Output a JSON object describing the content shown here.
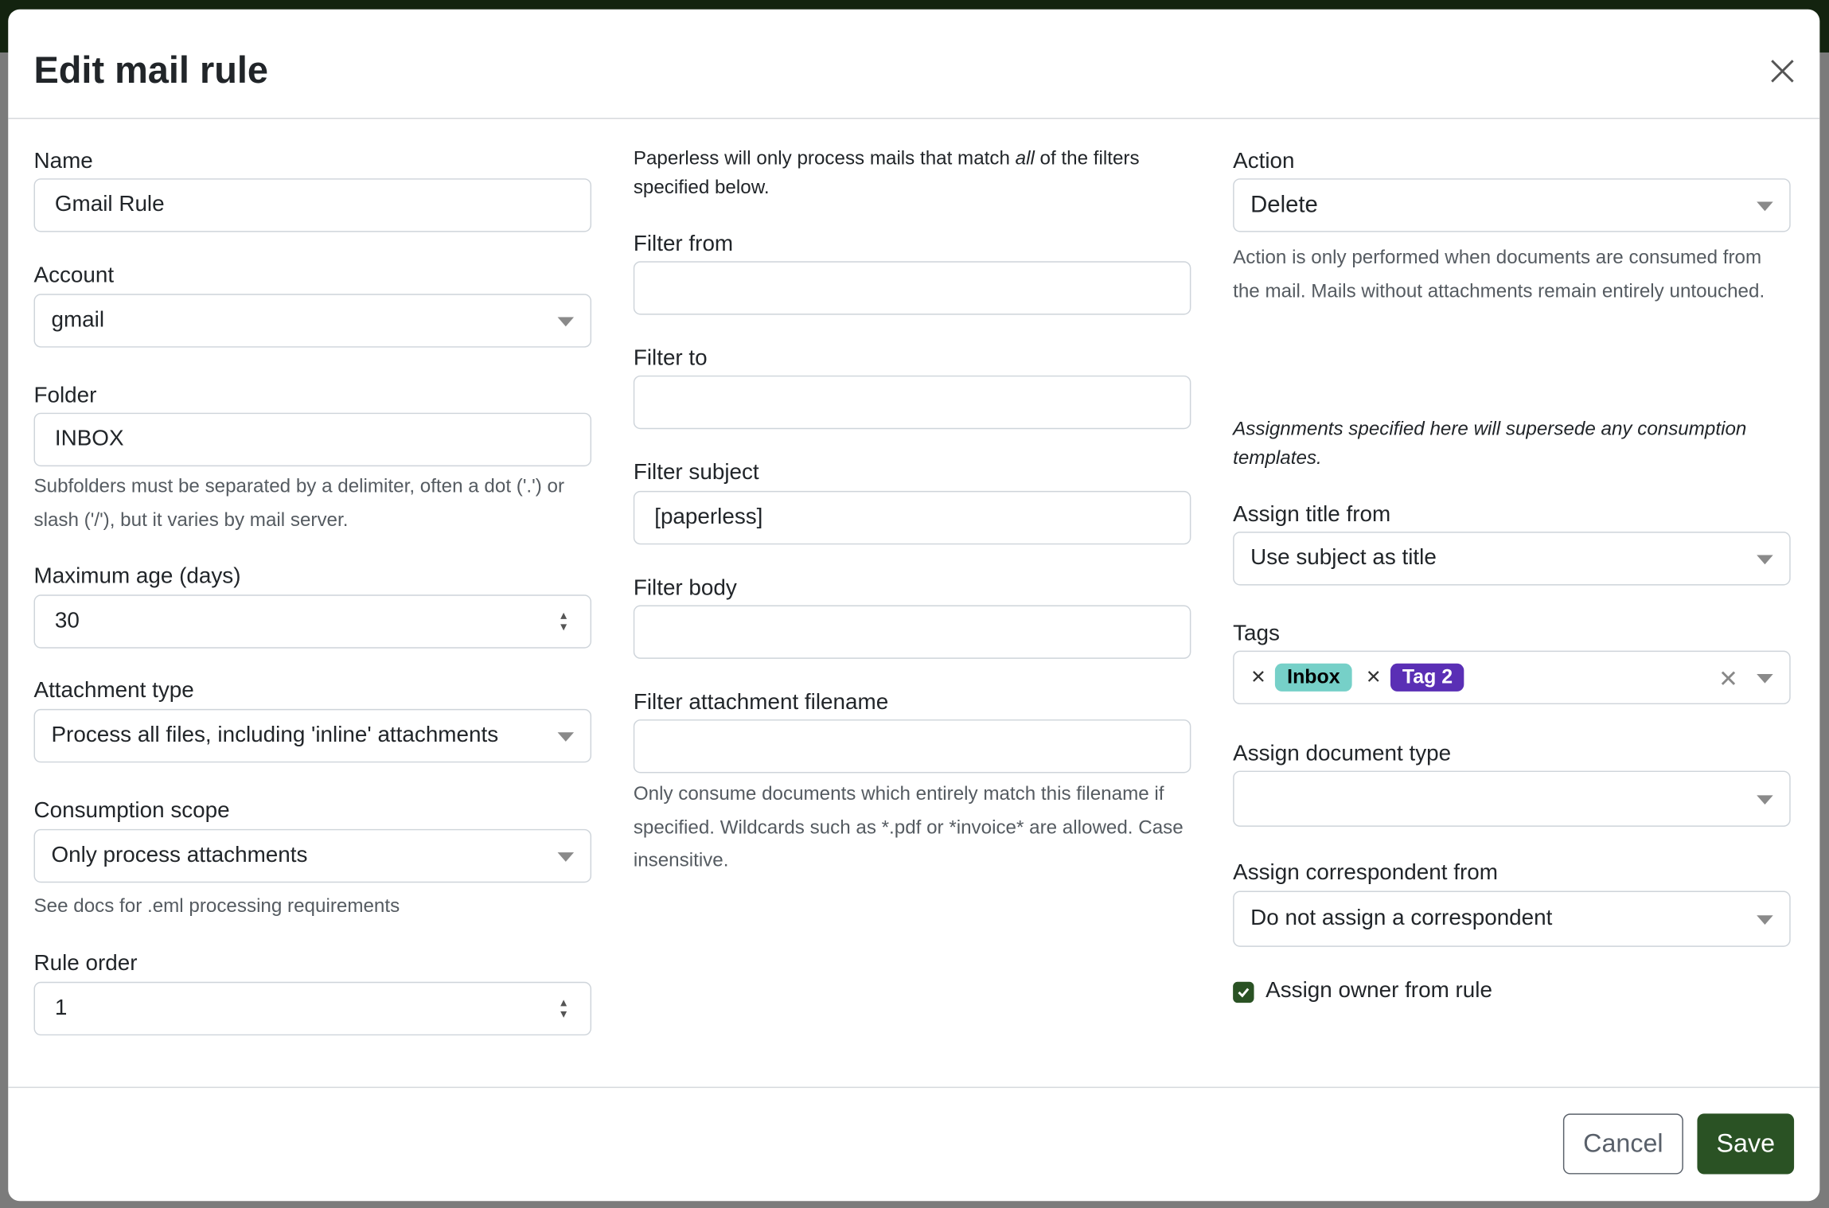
{
  "dialog": {
    "title": "Edit mail rule",
    "close_icon": "close-icon"
  },
  "col1": {
    "name": {
      "label": "Name",
      "value": "Gmail Rule"
    },
    "account": {
      "label": "Account",
      "value": "gmail"
    },
    "folder": {
      "label": "Folder",
      "value": "INBOX",
      "help": "Subfolders must be separated by a delimiter, often a dot ('.') or slash ('/'), but it varies by mail server."
    },
    "max_age": {
      "label": "Maximum age (days)",
      "value": "30"
    },
    "attachment_type": {
      "label": "Attachment type",
      "value": "Process all files, including 'inline' attachments"
    },
    "consumption_scope": {
      "label": "Consumption scope",
      "value": "Only process attachments",
      "help": "See docs for .eml processing requirements"
    },
    "rule_order": {
      "label": "Rule order",
      "value": "1"
    }
  },
  "col2": {
    "intro_pre": "Paperless will only process mails that match ",
    "intro_em": "all",
    "intro_post": " of the filters specified below.",
    "filter_from": {
      "label": "Filter from",
      "value": ""
    },
    "filter_to": {
      "label": "Filter to",
      "value": ""
    },
    "filter_subject": {
      "label": "Filter subject",
      "value": "[paperless]"
    },
    "filter_body": {
      "label": "Filter body",
      "value": ""
    },
    "filter_attachment": {
      "label": "Filter attachment filename",
      "value": "",
      "help": "Only consume documents which entirely match this filename if specified. Wildcards such as *.pdf or *invoice* are allowed. Case insensitive."
    }
  },
  "col3": {
    "action": {
      "label": "Action",
      "value": "Delete",
      "help": "Action is only performed when documents are consumed from the mail. Mails without attachments remain entirely untouched."
    },
    "assign_note": "Assignments specified here will supersede any consumption templates.",
    "assign_title": {
      "label": "Assign title from",
      "value": "Use subject as title"
    },
    "tags": {
      "label": "Tags",
      "items": [
        {
          "name": "Inbox",
          "bg": "#76d0c8",
          "fg": "#000000"
        },
        {
          "name": "Tag 2",
          "bg": "#5a2fb5",
          "fg": "#ffffff"
        }
      ]
    },
    "doc_type": {
      "label": "Assign document type",
      "value": ""
    },
    "correspondent": {
      "label": "Assign correspondent from",
      "value": "Do not assign a correspondent"
    },
    "owner": {
      "label": "Assign owner from rule",
      "checked": true
    }
  },
  "footer": {
    "cancel": "Cancel",
    "save": "Save"
  },
  "colors": {
    "primary": "#2a5224",
    "backdrop": "#7b7b7b"
  }
}
